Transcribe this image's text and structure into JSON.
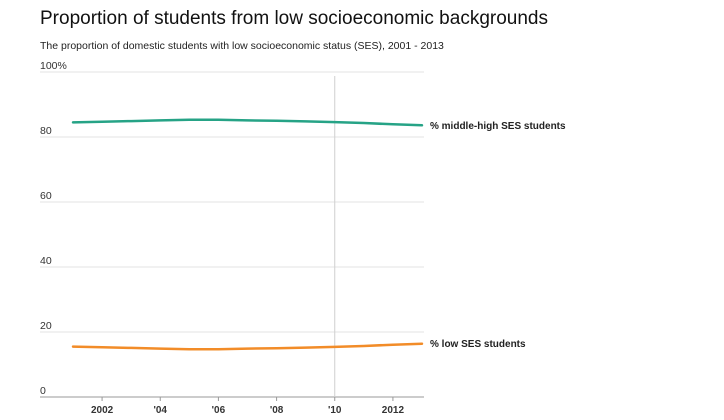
{
  "title": "Proportion of students from low socioeconomic backgrounds",
  "subtitle": "The proportion of domestic students with low socioeconomic status (SES), 2001 - 2013",
  "chart_data": {
    "type": "line",
    "x": [
      2001,
      2002,
      2003,
      2004,
      2005,
      2006,
      2007,
      2008,
      2009,
      2010,
      2011,
      2012,
      2013
    ],
    "x_tick_values": [
      2002,
      2004,
      2006,
      2008,
      2010,
      2012
    ],
    "x_tick_labels": [
      "2002",
      "'04",
      "'06",
      "'08",
      "'10",
      "2012"
    ],
    "xlim": [
      2001,
      2013
    ],
    "y_ticks": [
      0,
      20,
      40,
      60,
      80,
      100
    ],
    "y_tick_labels": [
      "0",
      "20",
      "40",
      "60",
      "80",
      "100%"
    ],
    "ylim": [
      0,
      100
    ],
    "grid": true,
    "highlight_x": 2010,
    "series": [
      {
        "name": "% middle-high SES students",
        "color": "#26a386",
        "values": [
          84.5,
          84.7,
          84.9,
          85.1,
          85.3,
          85.3,
          85.1,
          85.0,
          84.8,
          84.6,
          84.3,
          83.9,
          83.6
        ]
      },
      {
        "name": "% low SES students",
        "color": "#f28c28",
        "values": [
          15.5,
          15.3,
          15.1,
          14.9,
          14.7,
          14.7,
          14.9,
          15.0,
          15.2,
          15.4,
          15.7,
          16.1,
          16.4
        ]
      }
    ]
  }
}
